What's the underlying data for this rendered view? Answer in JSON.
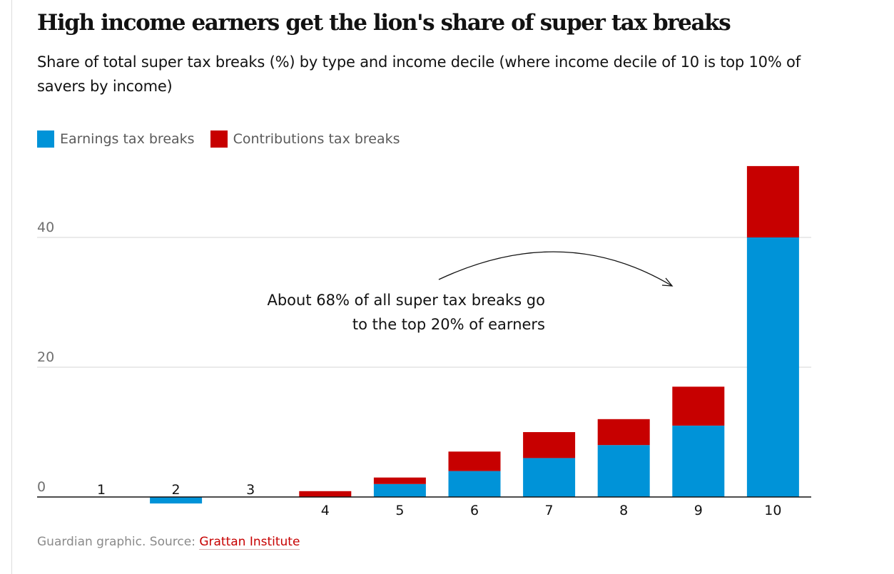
{
  "header": {
    "title": "High income earners get the lion's share of super tax breaks",
    "subtitle": "Share of total super tax breaks (%) by type and income decile (where income decile of 10 is top 10% of savers by income)"
  },
  "legend": {
    "items": [
      {
        "label": "Earnings tax breaks",
        "color": "#0093d8"
      },
      {
        "label": "Contributions tax breaks",
        "color": "#c70000"
      }
    ]
  },
  "annotation": {
    "line1": "About 68% of all super tax breaks go",
    "line2": "to the top 20% of earners"
  },
  "footer": {
    "prefix": "Guardian graphic. Source: ",
    "source_link": "Grattan Institute"
  },
  "chart_data": {
    "type": "bar",
    "stacked": true,
    "categories": [
      "1",
      "2",
      "3",
      "4",
      "5",
      "6",
      "7",
      "8",
      "9",
      "10"
    ],
    "series": [
      {
        "name": "Earnings tax breaks",
        "color": "#0093d8",
        "values": [
          0,
          -1.0,
          0,
          0,
          2.0,
          4.0,
          6.0,
          8.0,
          11.0,
          40.0
        ]
      },
      {
        "name": "Contributions tax breaks",
        "color": "#c70000",
        "values": [
          0,
          0,
          0,
          0.9,
          1.0,
          3.0,
          4.0,
          4.0,
          6.0,
          11.0
        ]
      }
    ],
    "yticks": [
      0,
      20,
      40
    ],
    "ylim": [
      -1.5,
      52
    ],
    "grid": true,
    "legend_position": "top-left"
  }
}
